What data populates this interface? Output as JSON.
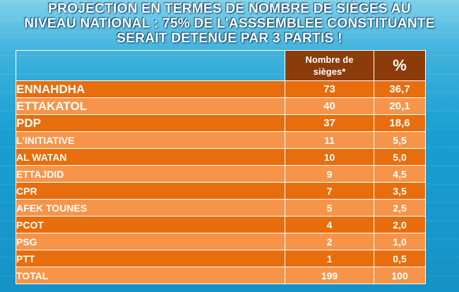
{
  "title_lines": [
    "PROJECTION EN TERMES DE NOMBRE DE SIÈGES AU",
    "NIVEAU NATIONAL : 75% DE L'ASSSEMBLEE CONSTITUANTE",
    "SERAIT DETENUE PAR 3 PARTIS !"
  ],
  "header": {
    "seats_line1": "Nombre de",
    "seats_line2": "sièges*",
    "pct": "%"
  },
  "chart_data": {
    "type": "table",
    "title": "PROJECTION EN TERMES DE NOMBRE DE SIÈGES AU NIVEAU NATIONAL : 75% DE L'ASSSEMBLEE CONSTITUANTE SERAIT DETENUE PAR 3 PARTIS !",
    "columns": [
      "",
      "Nombre de sièges*",
      "%"
    ],
    "rows": [
      {
        "party": "ENNAHDHA",
        "seats": "73",
        "pct": "36,7"
      },
      {
        "party": "ETTAKATOL",
        "seats": "40",
        "pct": "20,1"
      },
      {
        "party": "PDP",
        "seats": "37",
        "pct": "18,6"
      },
      {
        "party": "L'INITIATIVE",
        "seats": "11",
        "pct": "5,5"
      },
      {
        "party": "AL WATAN",
        "seats": "10",
        "pct": "5,0"
      },
      {
        "party": "ETTAJDID",
        "seats": "9",
        "pct": "4,5"
      },
      {
        "party": "CPR",
        "seats": "7",
        "pct": "3,5"
      },
      {
        "party": "AFEK TOUNES",
        "seats": "5",
        "pct": "2,5"
      },
      {
        "party": "PCOT",
        "seats": "4",
        "pct": "2,0"
      },
      {
        "party": "PSG",
        "seats": "2",
        "pct": "1,0"
      },
      {
        "party": "PTT",
        "seats": "1",
        "pct": "0,5"
      },
      {
        "party": "TOTAL",
        "seats": "199",
        "pct": "100"
      }
    ]
  },
  "colors": {
    "header": "#8b3c0a",
    "row_dark": "#e86d0c",
    "row_light": "#f6954a",
    "background": "#1a9fd2"
  }
}
